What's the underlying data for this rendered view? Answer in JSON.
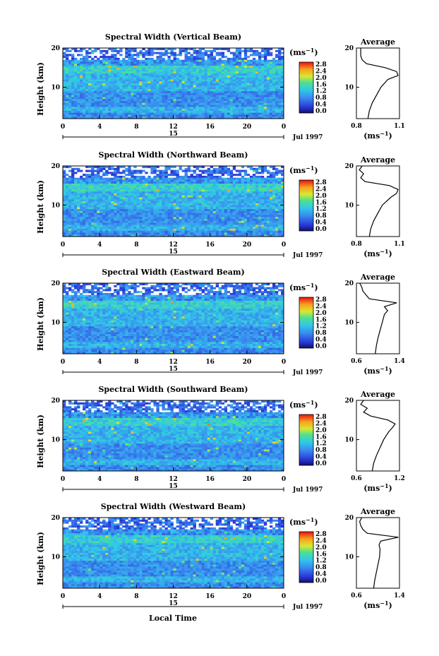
{
  "figure": {
    "xlabel": "Local Time",
    "date_label": "Jul 1997",
    "day_label": "15",
    "unit_label": "(ms",
    "unit_sup": "−1",
    "height_label": "Height (km)",
    "average_title": "Average"
  },
  "chart_data": [
    {
      "type": "heatmap",
      "title": "Spectral Width (Vertical Beam)",
      "x": [
        0,
        4,
        8,
        12,
        16,
        20,
        24
      ],
      "xticks": [
        "0",
        "4",
        "8",
        "12",
        "16",
        "20",
        "0"
      ],
      "xlim": [
        0,
        24
      ],
      "ylim": [
        2,
        20
      ],
      "yticks": [
        10,
        20
      ],
      "colorbar": [
        "0.0",
        "0.4",
        "0.8",
        "1.2",
        "1.6",
        "2.0",
        "2.4",
        "2.8"
      ],
      "colorbar_range": [
        0.0,
        2.8
      ],
      "average": {
        "xticks": [
          "0.8",
          "1.1"
        ],
        "xlim": [
          0.8,
          1.1
        ],
        "profile": [
          [
            2,
            0.88
          ],
          [
            4,
            0.89
          ],
          [
            6,
            0.91
          ],
          [
            8,
            0.94
          ],
          [
            10,
            0.97
          ],
          [
            12,
            1.02
          ],
          [
            13,
            1.09
          ],
          [
            14,
            1.08
          ],
          [
            15,
            1.0
          ],
          [
            16,
            0.87
          ],
          [
            17,
            0.84
          ],
          [
            18,
            0.83
          ],
          [
            19,
            0.83
          ],
          [
            20,
            0.83
          ]
        ]
      }
    },
    {
      "type": "heatmap",
      "title": "Spectral Width (Northward Beam)",
      "x": [
        0,
        4,
        8,
        12,
        16,
        20,
        24
      ],
      "xticks": [
        "0",
        "4",
        "8",
        "12",
        "16",
        "20",
        "0"
      ],
      "xlim": [
        0,
        24
      ],
      "ylim": [
        2,
        20
      ],
      "yticks": [
        10,
        20
      ],
      "colorbar": [
        "0.0",
        "0.4",
        "0.8",
        "1.2",
        "1.6",
        "2.0",
        "2.4",
        "2.8"
      ],
      "colorbar_range": [
        0.0,
        2.8
      ],
      "average": {
        "xticks": [
          "0.8",
          "1.1"
        ],
        "xlim": [
          0.8,
          1.1
        ],
        "profile": [
          [
            2,
            0.89
          ],
          [
            4,
            0.9
          ],
          [
            6,
            0.92
          ],
          [
            8,
            0.95
          ],
          [
            10,
            0.98
          ],
          [
            12,
            1.04
          ],
          [
            13,
            1.08
          ],
          [
            14,
            1.09
          ],
          [
            15,
            1.03
          ],
          [
            16,
            0.86
          ],
          [
            17,
            0.83
          ],
          [
            18,
            0.85
          ],
          [
            19,
            0.82
          ],
          [
            20,
            0.84
          ]
        ]
      }
    },
    {
      "type": "heatmap",
      "title": "Spectral Width (Eastward Beam)",
      "x": [
        0,
        4,
        8,
        12,
        16,
        20,
        24
      ],
      "xticks": [
        "0",
        "4",
        "8",
        "12",
        "16",
        "20",
        "0"
      ],
      "xlim": [
        0,
        24
      ],
      "ylim": [
        2,
        20
      ],
      "yticks": [
        10,
        20
      ],
      "colorbar": [
        "0.0",
        "0.4",
        "0.8",
        "1.2",
        "1.6",
        "2.0",
        "2.4",
        "2.8"
      ],
      "colorbar_range": [
        0.0,
        2.8
      ],
      "average": {
        "xticks": [
          "0.6",
          "1.4"
        ],
        "xlim": [
          0.6,
          1.4
        ],
        "profile": [
          [
            2,
            0.95
          ],
          [
            4,
            0.97
          ],
          [
            6,
            1.0
          ],
          [
            8,
            1.04
          ],
          [
            10,
            1.08
          ],
          [
            12,
            1.12
          ],
          [
            13,
            1.18
          ],
          [
            14,
            1.12
          ],
          [
            15,
            1.35
          ],
          [
            16,
            0.84
          ],
          [
            17,
            0.78
          ],
          [
            18,
            0.72
          ],
          [
            19,
            0.7
          ],
          [
            20,
            0.66
          ]
        ]
      }
    },
    {
      "type": "heatmap",
      "title": "Spectral Width (Southward Beam)",
      "x": [
        0,
        4,
        8,
        12,
        16,
        20,
        24
      ],
      "xticks": [
        "0",
        "4",
        "8",
        "12",
        "16",
        "20",
        "0"
      ],
      "xlim": [
        0,
        24
      ],
      "ylim": [
        2,
        20
      ],
      "yticks": [
        10,
        20
      ],
      "colorbar": [
        "0.0",
        "0.4",
        "0.8",
        "1.2",
        "1.6",
        "2.0",
        "2.4",
        "2.8"
      ],
      "colorbar_range": [
        0.0,
        2.8
      ],
      "average": {
        "xticks": [
          "0.6",
          "1.2"
        ],
        "xlim": [
          0.6,
          1.2
        ],
        "profile": [
          [
            2,
            0.82
          ],
          [
            4,
            0.84
          ],
          [
            6,
            0.88
          ],
          [
            8,
            0.93
          ],
          [
            10,
            0.98
          ],
          [
            12,
            1.05
          ],
          [
            13,
            1.1
          ],
          [
            14,
            1.14
          ],
          [
            15,
            1.04
          ],
          [
            16,
            0.8
          ],
          [
            17,
            0.7
          ],
          [
            18,
            0.75
          ],
          [
            19,
            0.66
          ],
          [
            20,
            0.7
          ]
        ]
      }
    },
    {
      "type": "heatmap",
      "title": "Spectral Width (Westward Beam)",
      "x": [
        0,
        4,
        8,
        12,
        16,
        20,
        24
      ],
      "xticks": [
        "0",
        "4",
        "8",
        "12",
        "16",
        "20",
        "0"
      ],
      "xlim": [
        0,
        24
      ],
      "ylim": [
        2,
        20
      ],
      "yticks": [
        10,
        20
      ],
      "colorbar": [
        "0.0",
        "0.4",
        "0.8",
        "1.2",
        "1.6",
        "2.0",
        "2.4",
        "2.8"
      ],
      "colorbar_range": [
        0.0,
        2.8
      ],
      "average": {
        "xticks": [
          "0.6",
          "1.4"
        ],
        "xlim": [
          0.6,
          1.4
        ],
        "profile": [
          [
            2,
            0.92
          ],
          [
            4,
            0.94
          ],
          [
            6,
            0.97
          ],
          [
            8,
            1.0
          ],
          [
            10,
            1.03
          ],
          [
            12,
            1.04
          ],
          [
            13,
            1.02
          ],
          [
            14,
            1.05
          ],
          [
            15,
            1.38
          ],
          [
            16,
            0.8
          ],
          [
            17,
            0.72
          ],
          [
            18,
            0.68
          ],
          [
            19,
            0.66
          ],
          [
            20,
            0.7
          ]
        ]
      }
    }
  ]
}
